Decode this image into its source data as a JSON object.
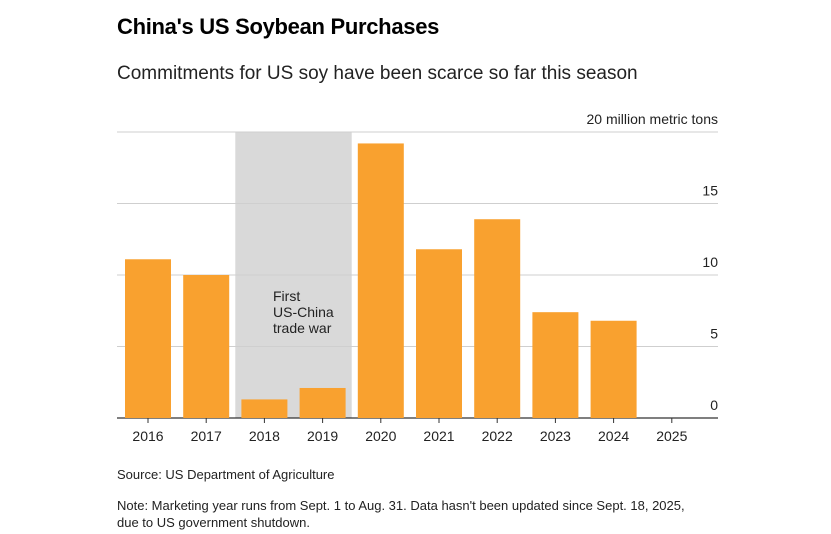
{
  "chart_data": {
    "type": "bar",
    "title": "China's US Soybean Purchases",
    "subtitle": "Commitments for US soy have been scarce so far this season",
    "unit_label": "20 million metric tons",
    "categories": [
      "2016",
      "2017",
      "2018",
      "2019",
      "2020",
      "2021",
      "2022",
      "2023",
      "2024",
      "2025"
    ],
    "values": [
      11.1,
      10.0,
      1.3,
      2.1,
      19.2,
      11.8,
      13.9,
      7.4,
      6.8,
      0
    ],
    "ylim": [
      0,
      20
    ],
    "yticks": [
      0,
      5,
      10,
      15,
      20
    ],
    "ytick_labels": [
      "0",
      "5",
      "10",
      "15",
      "20 million metric tons"
    ],
    "grid": true,
    "bar_color": "#f9a12f",
    "shade_color": "#d9d9d9",
    "annotation": {
      "shaded_categories": [
        "2018",
        "2019"
      ],
      "lines": [
        "First",
        "US-China",
        "trade war"
      ]
    }
  },
  "source": "Source: US Department of Agriculture",
  "note_line1": "Note: Marketing year runs from Sept. 1 to Aug. 31. Data hasn't been updated since Sept. 18, 2025,",
  "note_line2": "due to US government shutdown."
}
